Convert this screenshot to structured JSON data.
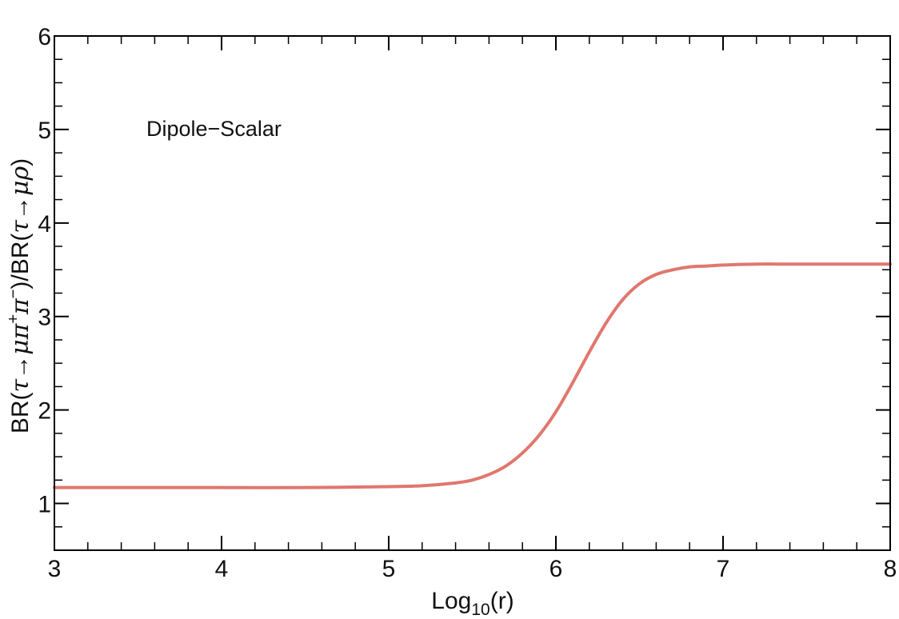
{
  "chart_data": {
    "type": "line",
    "title": "",
    "xlabel": {
      "base": "Log",
      "sub": "10",
      "tail": "(r)"
    },
    "ylabel": {
      "p1": "BR(",
      "tau": "τ",
      "arrow": "→",
      "mu": "μ",
      "pi": "π",
      "plus": "+",
      "minus": "−",
      "mid": ")/BR(",
      "rho": "ρ",
      "end": ")"
    },
    "annotation": "Dipole−Scalar",
    "xlim": [
      3,
      8
    ],
    "ylim": [
      0.5,
      6
    ],
    "xticks": [
      3,
      4,
      5,
      6,
      7,
      8
    ],
    "xtick_labels": [
      "3",
      "4",
      "5",
      "6",
      "7",
      "8"
    ],
    "yticks": [
      1,
      2,
      3,
      4,
      5,
      6
    ],
    "ytick_labels": [
      "1",
      "2",
      "3",
      "4",
      "5",
      "6"
    ],
    "x_minor_step": 0.2,
    "y_minor_step": 0.25,
    "grid": false,
    "series": [
      {
        "color": "#e0776e",
        "x": [
          3.0,
          3.5,
          4.0,
          4.5,
          5.0,
          5.2,
          5.4,
          5.5,
          5.6,
          5.7,
          5.8,
          5.9,
          6.0,
          6.1,
          6.2,
          6.3,
          6.4,
          6.5,
          6.6,
          6.7,
          6.8,
          6.9,
          7.0,
          7.2,
          7.4,
          7.6,
          7.8,
          8.0
        ],
        "y": [
          1.17,
          1.17,
          1.17,
          1.17,
          1.18,
          1.19,
          1.22,
          1.25,
          1.31,
          1.4,
          1.54,
          1.73,
          1.98,
          2.29,
          2.62,
          2.93,
          3.18,
          3.35,
          3.45,
          3.5,
          3.53,
          3.54,
          3.55,
          3.56,
          3.56,
          3.56,
          3.56,
          3.56
        ]
      }
    ]
  }
}
